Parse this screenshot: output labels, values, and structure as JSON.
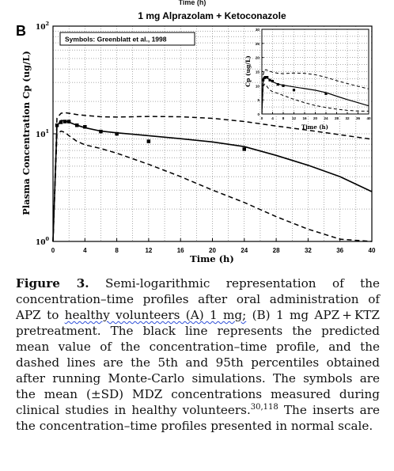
{
  "header_fragment": "Time (h)",
  "panel_label": "B",
  "chart_data": [
    {
      "type": "line",
      "title": "1 mg Alprazolam + Ketoconazole",
      "xlabel": "Time (h)",
      "ylabel": "Plasma Concentration Cp (ug/L)",
      "legend_text": "Symbols: Greenblatt et al., 1998",
      "legend_position": "top-left",
      "x_scale": "linear",
      "y_scale": "log",
      "xlim": [
        0,
        40
      ],
      "ylim": [
        1,
        100
      ],
      "x_ticks": [
        0,
        4,
        8,
        12,
        16,
        20,
        24,
        28,
        32,
        36,
        40
      ],
      "y_tick_labels": [
        {
          "base": "10",
          "exp": "0",
          "value": 1
        },
        {
          "base": "10",
          "exp": "1",
          "value": 10
        },
        {
          "base": "10",
          "exp": "2",
          "value": 100
        }
      ],
      "grid": true,
      "series": [
        {
          "role": "mean",
          "style": "solid",
          "x": [
            0,
            0.5,
            1,
            1.5,
            2,
            3,
            4,
            6,
            8,
            10,
            12,
            16,
            20,
            24,
            28,
            32,
            36,
            40
          ],
          "y": [
            1,
            11.8,
            13.3,
            13.2,
            12.8,
            12.0,
            11.4,
            10.6,
            10.2,
            9.9,
            9.6,
            9.0,
            8.4,
            7.6,
            6.3,
            5.1,
            4.0,
            2.9
          ]
        },
        {
          "role": "p95",
          "style": "dashed",
          "x": [
            0,
            0.5,
            1,
            1.5,
            2,
            3,
            4,
            6,
            8,
            12,
            16,
            20,
            24,
            28,
            32,
            36,
            40
          ],
          "y": [
            1,
            14.0,
            15.5,
            15.7,
            15.5,
            15.1,
            14.8,
            14.4,
            14.3,
            14.5,
            14.4,
            13.9,
            13.0,
            11.8,
            10.8,
            9.8,
            8.9
          ]
        },
        {
          "role": "p5",
          "style": "dashed",
          "x": [
            0,
            0.5,
            1,
            1.5,
            2,
            3,
            4,
            6,
            8,
            12,
            16,
            20,
            24,
            28,
            32,
            36,
            40
          ],
          "y": [
            1,
            9.9,
            10.6,
            10.3,
            9.6,
            8.5,
            7.9,
            7.3,
            6.6,
            5.2,
            4.0,
            3.0,
            2.3,
            1.7,
            1.3,
            1.05,
            1.0
          ]
        }
      ],
      "observed": {
        "style": "filled-square",
        "x": [
          0.5,
          1,
          1.5,
          2,
          3,
          4,
          6,
          8,
          12,
          24
        ],
        "y": [
          12.0,
          12.8,
          13.0,
          13.0,
          12.0,
          11.6,
          10.5,
          10.0,
          8.5,
          7.2
        ]
      }
    },
    {
      "type": "line",
      "role": "inset",
      "scale_note": "normal scale",
      "xlabel": "Time (h)",
      "ylabel": "Cp (ug/L)",
      "x_scale": "linear",
      "y_scale": "linear",
      "xlim": [
        0,
        40
      ],
      "ylim": [
        0,
        30
      ],
      "x_ticks": [
        0,
        4,
        8,
        12,
        16,
        20,
        24,
        28,
        32,
        36,
        40
      ],
      "y_ticks": [
        0,
        5,
        10,
        15,
        20,
        25,
        30
      ],
      "grid": true,
      "series": [
        {
          "role": "mean",
          "style": "solid",
          "x": [
            0,
            0.5,
            1,
            1.5,
            2,
            3,
            4,
            6,
            8,
            10,
            12,
            16,
            20,
            24,
            28,
            32,
            36,
            40
          ],
          "y": [
            0,
            11.8,
            13.3,
            13.2,
            12.8,
            12.0,
            11.4,
            10.6,
            10.2,
            9.9,
            9.6,
            9.0,
            8.4,
            7.6,
            6.3,
            5.1,
            4.0,
            2.9
          ]
        },
        {
          "role": "p95",
          "style": "dashed",
          "x": [
            0,
            0.5,
            1,
            1.5,
            2,
            3,
            4,
            6,
            8,
            12,
            16,
            20,
            24,
            28,
            32,
            36,
            40
          ],
          "y": [
            0,
            14.0,
            15.5,
            15.7,
            15.5,
            15.1,
            14.8,
            14.4,
            14.3,
            14.5,
            14.4,
            13.9,
            13.0,
            11.8,
            10.8,
            9.8,
            8.9
          ]
        },
        {
          "role": "p5",
          "style": "dashed",
          "x": [
            0,
            0.5,
            1,
            1.5,
            2,
            3,
            4,
            6,
            8,
            12,
            16,
            20,
            24,
            28,
            32,
            36,
            40
          ],
          "y": [
            0,
            9.9,
            10.6,
            10.3,
            9.6,
            8.5,
            7.9,
            7.3,
            6.6,
            5.2,
            4.0,
            3.0,
            2.3,
            1.7,
            1.3,
            1.05,
            1.0
          ]
        }
      ],
      "observed": {
        "style": "filled-square",
        "x": [
          0.5,
          1,
          1.5,
          2,
          3,
          4,
          6,
          8,
          12,
          24
        ],
        "y": [
          12.0,
          12.8,
          13.0,
          13.0,
          12.0,
          11.6,
          10.5,
          10.0,
          8.5,
          7.2
        ]
      }
    }
  ],
  "caption": {
    "label": "Figure 3.",
    "text_1": " Semi-logarithmic representation of the concentration–time profiles after oral administration of APZ to ",
    "underlined": "healthy volunteers (A) 1 mg;",
    "text_2": " (B) 1 mg APZ + KTZ pretreatment. The black line represents the predicted mean value of the concentration–time profile, and the dashed lines are the 5th and 95th percentiles obtained after running Monte-Carlo simulations. The symbols are the mean (±SD) MDZ concentrations measured during clinical studies in healthy volunteers.",
    "refs": "30,118",
    "text_3": " The inserts are the concentration–time profiles presented in normal scale."
  }
}
